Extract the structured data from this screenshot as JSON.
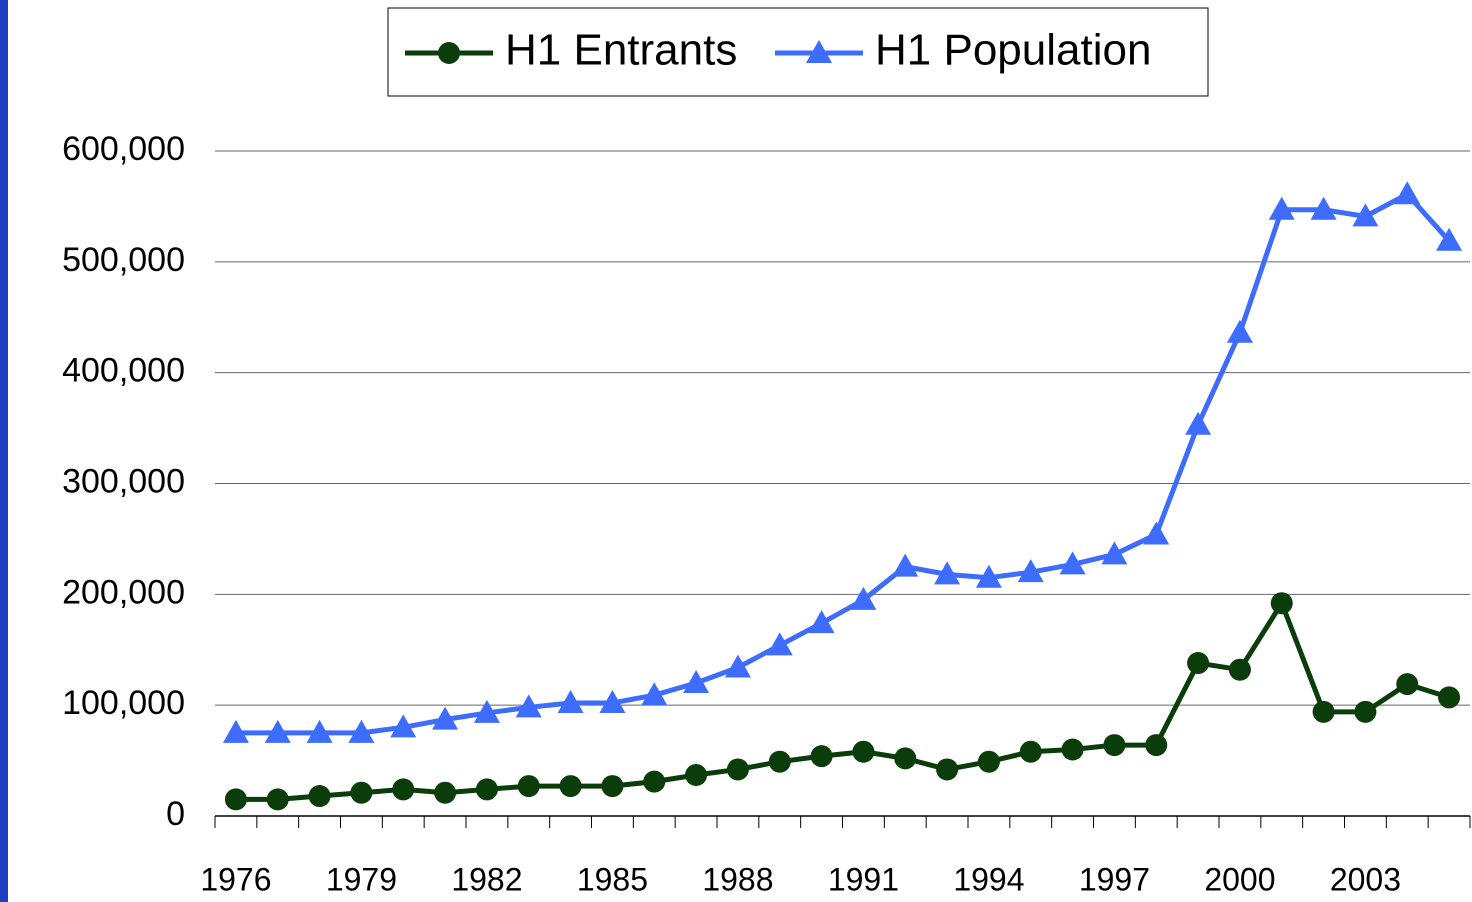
{
  "chart_data": {
    "type": "line",
    "categories": [
      "1976",
      null,
      null,
      "1979",
      null,
      null,
      "1982",
      null,
      null,
      "1985",
      null,
      null,
      "1988",
      null,
      null,
      "1991",
      null,
      null,
      "1994",
      null,
      null,
      "1997",
      null,
      null,
      "2000",
      null,
      null,
      "2003",
      null,
      null
    ],
    "series": [
      {
        "name": "H1 Entrants",
        "color": "#0b3d0b",
        "marker": "circle",
        "values": [
          15000,
          15000,
          18000,
          21000,
          24000,
          21000,
          24000,
          27000,
          27000,
          27000,
          31000,
          37000,
          42000,
          49000,
          54000,
          58000,
          52000,
          42000,
          49000,
          58000,
          60000,
          64000,
          64000,
          138000,
          132000,
          192000,
          94000,
          94000,
          119000,
          107000
        ]
      },
      {
        "name": "H1 Population",
        "color": "#3d6cff",
        "marker": "triangle",
        "values": [
          75000,
          75000,
          75000,
          75000,
          80000,
          87000,
          93000,
          98000,
          102000,
          102000,
          109000,
          120000,
          134000,
          154000,
          174000,
          195000,
          225000,
          218000,
          215000,
          220000,
          227000,
          236000,
          254000,
          353000,
          436000,
          547000,
          547000,
          541000,
          561000,
          519000
        ]
      }
    ],
    "ylim": [
      0,
      600000
    ],
    "yticks": [
      0,
      {
        "value": 100000,
        "label": "100,000"
      },
      {
        "value": 200000,
        "label": "200,000"
      },
      {
        "value": 300000,
        "label": "300,000"
      },
      {
        "value": 400000,
        "label": "400,000"
      },
      {
        "value": 500000,
        "label": "500,000"
      },
      {
        "value": 600000,
        "label": "600,000"
      }
    ],
    "grid": true,
    "legend": "top"
  }
}
